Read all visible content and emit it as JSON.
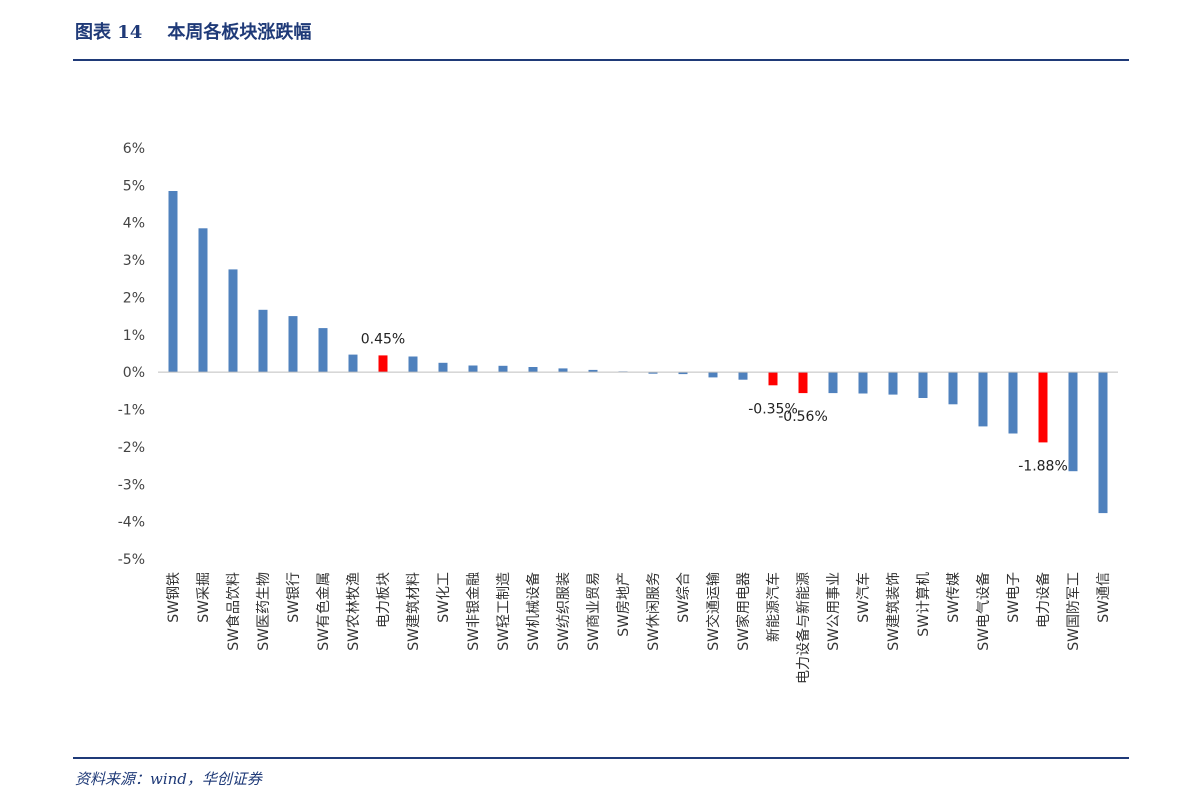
{
  "figure": {
    "title": "图表 14    本周各板块涨跌幅",
    "source": "资料来源：wind，华创证券"
  },
  "colors": {
    "header": "#1F3A78",
    "bar": "#4F81BD",
    "highlight": "#FF0000",
    "axis": "#BFBFBF"
  },
  "chart_data": {
    "type": "bar",
    "title": "",
    "xlabel": "",
    "ylabel": "",
    "ylim": [
      -5,
      6
    ],
    "yticks": [
      "6%",
      "5%",
      "4%",
      "3%",
      "2%",
      "1%",
      "0%",
      "-1%",
      "-2%",
      "-3%",
      "-4%",
      "-5%"
    ],
    "legend": "none",
    "grid": false,
    "categories": [
      "SW钢铁",
      "SW采掘",
      "SW食品饮料",
      "SW医药生物",
      "SW银行",
      "SW有色金属",
      "SW农林牧渔",
      "电力板块",
      "SW建筑材料",
      "SW化工",
      "SW非银金融",
      "SW轻工制造",
      "SW机械设备",
      "SW纺织服装",
      "SW商业贸易",
      "SW房地产",
      "SW休闲服务",
      "SW综合",
      "SW交通运输",
      "SW家用电器",
      "新能源汽车",
      "电力设备与新能源",
      "SW公用事业",
      "SW汽车",
      "SW建筑装饰",
      "SW计算机",
      "SW传媒",
      "SW电气设备",
      "SW电子",
      "电力设备",
      "SW国防军工",
      "SW通信"
    ],
    "values": [
      4.85,
      3.85,
      2.75,
      1.67,
      1.5,
      1.18,
      0.47,
      0.45,
      0.42,
      0.25,
      0.18,
      0.17,
      0.14,
      0.1,
      0.06,
      0.02,
      -0.04,
      -0.05,
      -0.14,
      -0.2,
      -0.35,
      -0.56,
      -0.56,
      -0.57,
      -0.6,
      -0.69,
      -0.86,
      -1.45,
      -1.64,
      -1.88,
      -2.65,
      -3.77
    ],
    "highlighted": [
      "电力板块",
      "新能源汽车",
      "电力设备与新能源",
      "电力设备"
    ],
    "data_labels": [
      {
        "category": "电力板块",
        "text": "0.45%"
      },
      {
        "category": "新能源汽车",
        "text": "-0.35%"
      },
      {
        "category": "电力设备与新能源",
        "text": "-0.56%"
      },
      {
        "category": "电力设备",
        "text": "-1.88%"
      }
    ]
  }
}
